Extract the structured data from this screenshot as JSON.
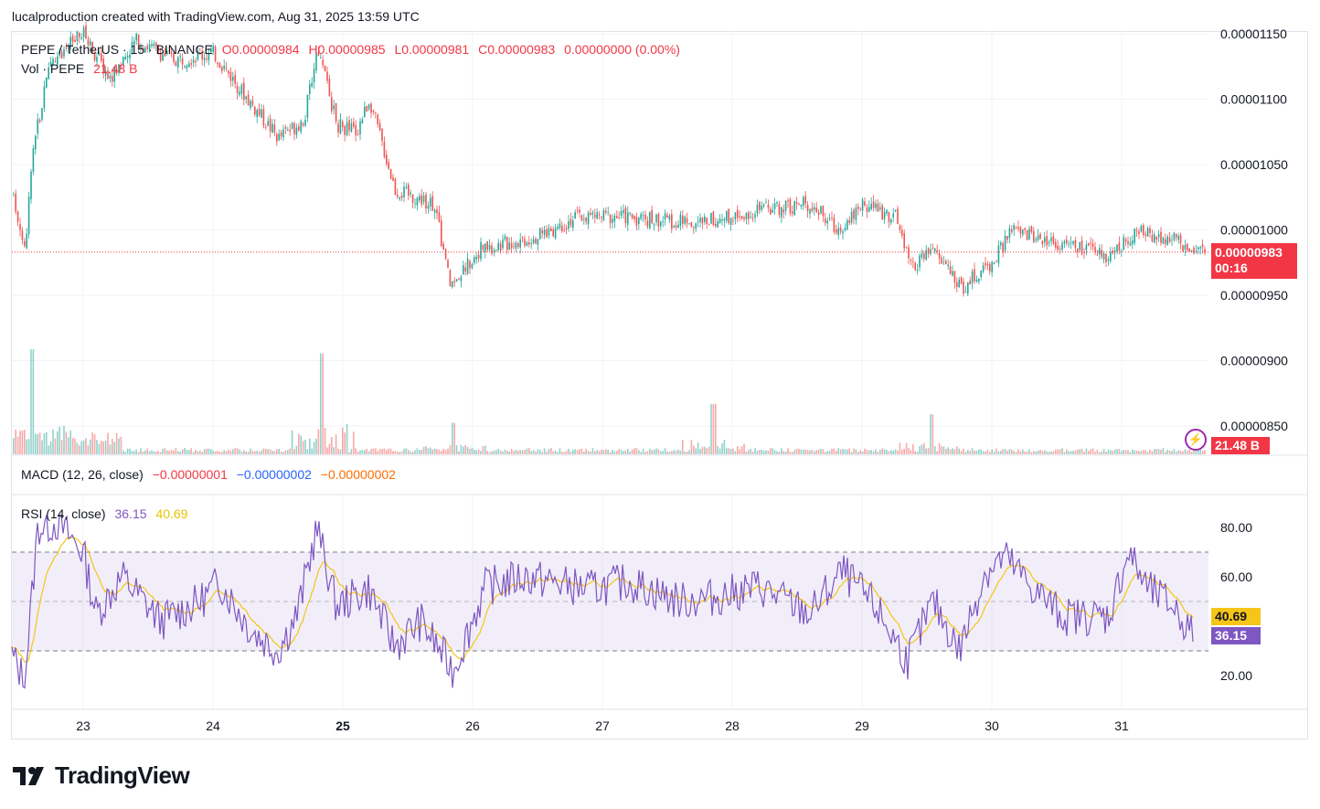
{
  "header": {
    "caption": "lucalproduction created with TradingView.com, Aug 31, 2025 13:59 UTC"
  },
  "legend": {
    "symbol": "PEPE / TetherUS · 15 · BINANCE",
    "o": "O0.00000984",
    "h": "H0.00000985",
    "l": "L0.00000981",
    "c": "C0.00000983",
    "change": "0.00000000 (0.00%)",
    "vol_label": "Vol · PEPE",
    "vol_value": "21.48 B"
  },
  "macd_legend": {
    "label": "MACD (12, 26, close)",
    "v1": "−0.00000001",
    "v2": "−0.00000002",
    "v3": "−0.00000002"
  },
  "rsi_legend": {
    "label": "RSI (14, close)",
    "v1": "36.15",
    "v2": "40.69"
  },
  "price_tag": {
    "price": "0.00000983",
    "countdown": "00:16"
  },
  "vol_tag": "21.48 B",
  "rsi_tags": {
    "ma": "40.69",
    "rsi": "36.15"
  },
  "brand": "TradingView",
  "colors": {
    "up": "#26a69a",
    "down": "#ef5350",
    "rsi": "#7e57c2",
    "rsi_ma": "#f5c518",
    "tag_red": "#f23645"
  },
  "chart_data": [
    {
      "type": "candlestick",
      "title": "PEPE / TetherUS · 15 · BINANCE",
      "x_ticks": [
        "23",
        "24",
        "25",
        "26",
        "27",
        "28",
        "29",
        "30",
        "31"
      ],
      "y_ticks": [
        "0.00001150",
        "0.00001100",
        "0.00001050",
        "0.00001000",
        "0.00000950",
        "0.00000900",
        "0.00000850"
      ],
      "y_range": [
        8.2e-06,
        1.16e-05
      ],
      "last_price": 9.83e-06,
      "anchors": [
        {
          "d": 22.45,
          "p": 1.03e-05
        },
        {
          "d": 22.55,
          "p": 9.85e-06
        },
        {
          "d": 22.6,
          "p": 1.06e-05
        },
        {
          "d": 22.75,
          "p": 1.13e-05
        },
        {
          "d": 23.0,
          "p": 1.15e-05
        },
        {
          "d": 23.2,
          "p": 1.115e-05
        },
        {
          "d": 23.4,
          "p": 1.145e-05
        },
        {
          "d": 23.7,
          "p": 1.13e-05
        },
        {
          "d": 24.0,
          "p": 1.135e-05
        },
        {
          "d": 24.3,
          "p": 1.095e-05
        },
        {
          "d": 24.5,
          "p": 1.07e-05
        },
        {
          "d": 24.7,
          "p": 1.085e-05
        },
        {
          "d": 24.8,
          "p": 1.14e-05
        },
        {
          "d": 24.95,
          "p": 1.08e-05
        },
        {
          "d": 25.1,
          "p": 1.075e-05
        },
        {
          "d": 25.2,
          "p": 1.1e-05
        },
        {
          "d": 25.4,
          "p": 1.03e-05
        },
        {
          "d": 25.7,
          "p": 1.02e-05
        },
        {
          "d": 25.82,
          "p": 9.58e-06
        },
        {
          "d": 26.05,
          "p": 9.85e-06
        },
        {
          "d": 26.5,
          "p": 9.95e-06
        },
        {
          "d": 26.8,
          "p": 1.01e-05
        },
        {
          "d": 27.2,
          "p": 1.01e-05
        },
        {
          "d": 27.7,
          "p": 1.005e-05
        },
        {
          "d": 28.2,
          "p": 1.015e-05
        },
        {
          "d": 28.6,
          "p": 1.02e-05
        },
        {
          "d": 28.8,
          "p": 1e-05
        },
        {
          "d": 29.0,
          "p": 1.02e-05
        },
        {
          "d": 29.25,
          "p": 1.01e-05
        },
        {
          "d": 29.38,
          "p": 9.7e-06
        },
        {
          "d": 29.55,
          "p": 9.85e-06
        },
        {
          "d": 29.75,
          "p": 9.55e-06
        },
        {
          "d": 30.0,
          "p": 9.75e-06
        },
        {
          "d": 30.15,
          "p": 1e-05
        },
        {
          "d": 30.5,
          "p": 9.9e-06
        },
        {
          "d": 30.9,
          "p": 9.8e-06
        },
        {
          "d": 31.1,
          "p": 9.98e-06
        },
        {
          "d": 31.35,
          "p": 9.95e-06
        },
        {
          "d": 31.55,
          "p": 9.83e-06
        }
      ],
      "volume_spikes": [
        {
          "d": 22.6,
          "v": 1.0
        },
        {
          "d": 24.83,
          "v": 0.96
        },
        {
          "d": 27.85,
          "v": 0.48
        },
        {
          "d": 29.53,
          "v": 0.38
        },
        {
          "d": 25.85,
          "v": 0.3
        }
      ]
    },
    {
      "type": "line",
      "title": "RSI (14, close)",
      "y_ticks": [
        "80.00",
        "60.00",
        "20.00"
      ],
      "y_range": [
        10,
        90
      ],
      "bands": [
        30,
        70
      ],
      "midline": 50,
      "series": [
        {
          "name": "RSI",
          "last": 36.15
        },
        {
          "name": "MA",
          "last": 40.69
        }
      ],
      "anchors": [
        {
          "d": 22.45,
          "v": 28
        },
        {
          "d": 22.55,
          "v": 18
        },
        {
          "d": 22.65,
          "v": 80
        },
        {
          "d": 22.8,
          "v": 82
        },
        {
          "d": 23.0,
          "v": 70
        },
        {
          "d": 23.1,
          "v": 45
        },
        {
          "d": 23.3,
          "v": 60
        },
        {
          "d": 23.6,
          "v": 42
        },
        {
          "d": 23.9,
          "v": 50
        },
        {
          "d": 24.05,
          "v": 58
        },
        {
          "d": 24.3,
          "v": 38
        },
        {
          "d": 24.5,
          "v": 30
        },
        {
          "d": 24.65,
          "v": 45
        },
        {
          "d": 24.8,
          "v": 80
        },
        {
          "d": 24.95,
          "v": 48
        },
        {
          "d": 25.2,
          "v": 55
        },
        {
          "d": 25.4,
          "v": 32
        },
        {
          "d": 25.6,
          "v": 42
        },
        {
          "d": 25.85,
          "v": 22
        },
        {
          "d": 26.1,
          "v": 56
        },
        {
          "d": 26.4,
          "v": 60
        },
        {
          "d": 26.9,
          "v": 55
        },
        {
          "d": 27.2,
          "v": 58
        },
        {
          "d": 27.6,
          "v": 50
        },
        {
          "d": 27.9,
          "v": 52
        },
        {
          "d": 28.2,
          "v": 56
        },
        {
          "d": 28.6,
          "v": 45
        },
        {
          "d": 28.85,
          "v": 62
        },
        {
          "d": 29.1,
          "v": 48
        },
        {
          "d": 29.35,
          "v": 26
        },
        {
          "d": 29.55,
          "v": 50
        },
        {
          "d": 29.75,
          "v": 30
        },
        {
          "d": 29.95,
          "v": 62
        },
        {
          "d": 30.1,
          "v": 68
        },
        {
          "d": 30.3,
          "v": 56
        },
        {
          "d": 30.55,
          "v": 44
        },
        {
          "d": 30.9,
          "v": 44
        },
        {
          "d": 31.05,
          "v": 70
        },
        {
          "d": 31.2,
          "v": 55
        },
        {
          "d": 31.4,
          "v": 48
        },
        {
          "d": 31.55,
          "v": 36
        }
      ]
    }
  ]
}
